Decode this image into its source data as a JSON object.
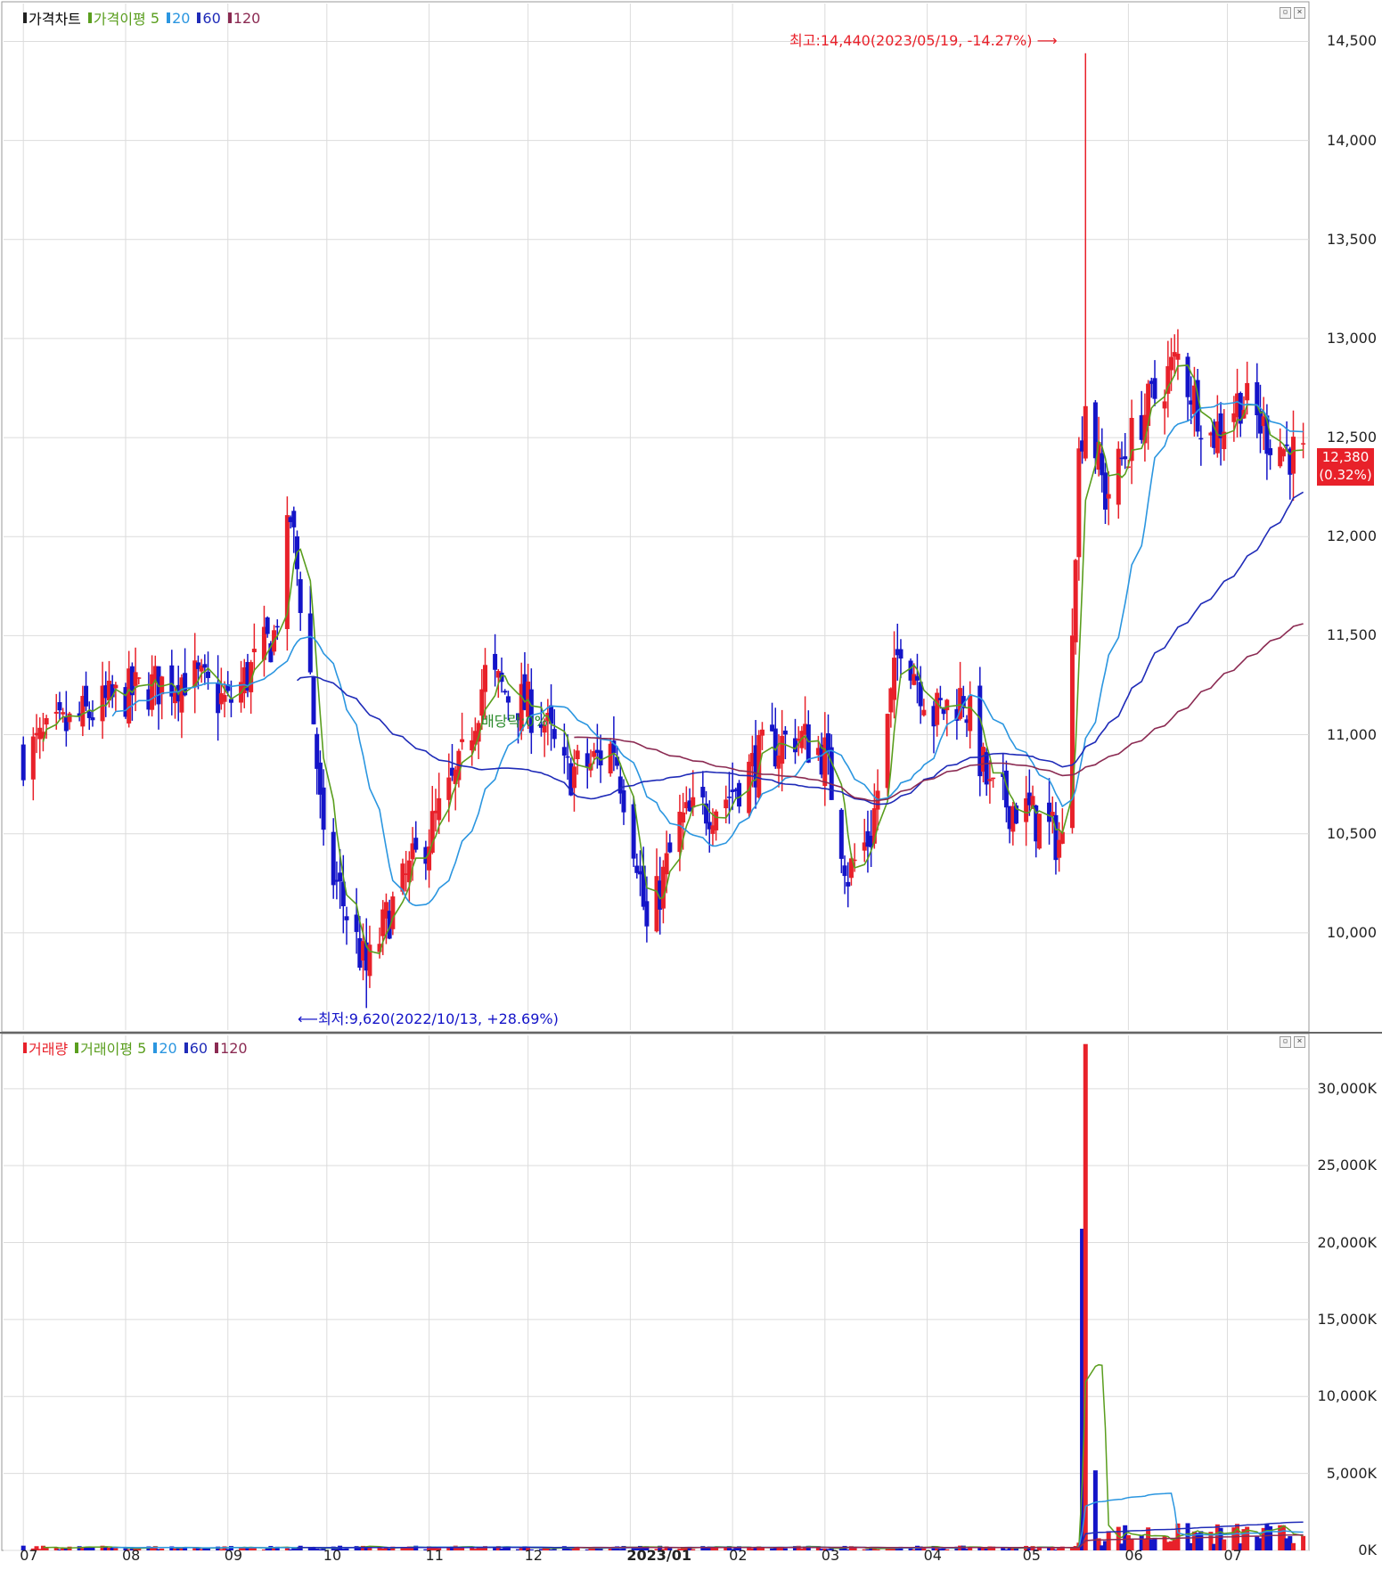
{
  "price_panel": {
    "legend": {
      "label": "가격차트",
      "ma_label": "가격이평",
      "periods": [
        "5",
        "20",
        "60",
        "120"
      ]
    },
    "current_price": "12,380",
    "current_change": "(0.32%)",
    "high_annotation": "최고:14,440(2023/05/19, -14.27%)",
    "low_annotation": "최저:9,620(2022/10/13, +28.69%)",
    "dividend_annotation": "배당락:0%"
  },
  "volume_panel": {
    "legend": {
      "label": "거래량",
      "ma_label": "거래이평",
      "periods": [
        "5",
        "20",
        "60",
        "120"
      ]
    }
  },
  "colors": {
    "up": "#e8212a",
    "down": "#1414c8",
    "ma5": "#5a9e1e",
    "ma20": "#2b96e0",
    "ma60": "#1f2bb8",
    "ma120": "#8b2a52",
    "grid": "#dcdcdc"
  },
  "chart_data": [
    {
      "type": "candlestick",
      "title": "가격차트",
      "ylim": [
        9500,
        14700
      ],
      "y_ticks": [
        "14,500",
        "14,000",
        "13,500",
        "13,000",
        "12,500",
        "12,000",
        "11,500",
        "11,000",
        "10,500",
        "10,000"
      ],
      "x_ticks": [
        "07",
        "08",
        "09",
        "10",
        "11",
        "12",
        "2023/01",
        "02",
        "03",
        "04",
        "05",
        "06",
        "07"
      ],
      "series_names": [
        "가격이평 5",
        "20",
        "60",
        "120"
      ],
      "close_path": [
        {
          "date": "2022/07/01",
          "close": 10900
        },
        {
          "date": "2022/07/20",
          "close": 11100
        },
        {
          "date": "2022/08/01",
          "close": 11200
        },
        {
          "date": "2022/08/20",
          "close": 11300
        },
        {
          "date": "2022/09/01",
          "close": 11150
        },
        {
          "date": "2022/09/15",
          "close": 11500
        },
        {
          "date": "2022/09/20",
          "close": 12100
        },
        {
          "date": "2022/09/26",
          "close": 11300
        },
        {
          "date": "2022/09/30",
          "close": 10400
        },
        {
          "date": "2022/10/05",
          "close": 10200
        },
        {
          "date": "2022/10/13",
          "close": 9800
        },
        {
          "date": "2022/10/20",
          "close": 10100
        },
        {
          "date": "2022/11/01",
          "close": 10500
        },
        {
          "date": "2022/11/10",
          "close": 10800
        },
        {
          "date": "2022/11/18",
          "close": 11300
        },
        {
          "date": "2022/11/25",
          "close": 11200
        },
        {
          "date": "2022/12/05",
          "close": 11100
        },
        {
          "date": "2022/12/12",
          "close": 10800
        },
        {
          "date": "2022/12/20",
          "close": 10850
        },
        {
          "date": "2022/12/27",
          "close": 10950
        },
        {
          "date": "2023/01/03",
          "close": 10400
        },
        {
          "date": "2023/01/06",
          "close": 10000
        },
        {
          "date": "2023/01/16",
          "close": 10550
        },
        {
          "date": "2023/01/31",
          "close": 10700
        },
        {
          "date": "2023/02/10",
          "close": 10900
        },
        {
          "date": "2023/02/20",
          "close": 11000
        },
        {
          "date": "2023/03/01",
          "close": 10900
        },
        {
          "date": "2023/03/08",
          "close": 10300
        },
        {
          "date": "2023/03/15",
          "close": 10500
        },
        {
          "date": "2023/03/24",
          "close": 11500
        },
        {
          "date": "2023/04/03",
          "close": 11100
        },
        {
          "date": "2023/04/12",
          "close": 11200
        },
        {
          "date": "2023/04/20",
          "close": 10700
        },
        {
          "date": "2023/05/02",
          "close": 10600
        },
        {
          "date": "2023/05/12",
          "close": 10450
        },
        {
          "date": "2023/05/17",
          "close": 12400
        },
        {
          "date": "2023/05/19",
          "close": 12700
        },
        {
          "date": "2023/05/25",
          "close": 12200
        },
        {
          "date": "2023/06/05",
          "close": 12600
        },
        {
          "date": "2023/06/16",
          "close": 12900
        },
        {
          "date": "2023/06/26",
          "close": 12500
        },
        {
          "date": "2023/07/05",
          "close": 12700
        },
        {
          "date": "2023/07/14",
          "close": 12500
        },
        {
          "date": "2023/07/24",
          "close": 12380
        }
      ],
      "extremes": {
        "high": {
          "date": "2023/05/19",
          "value": 14440
        },
        "low": {
          "date": "2022/10/13",
          "value": 9620
        }
      }
    },
    {
      "type": "bar",
      "title": "거래량",
      "ylim": [
        0,
        33000
      ],
      "y_ticks": [
        "30,000K",
        "25,000K",
        "20,000K",
        "15,000K",
        "10,000K",
        "5,000K",
        "0K"
      ],
      "x_ticks": [
        "07",
        "08",
        "09",
        "10",
        "11",
        "12",
        "2023/01",
        "02",
        "03",
        "04",
        "05",
        "06",
        "07"
      ],
      "series_names": [
        "거래이평 5",
        "20",
        "60",
        "120"
      ],
      "unit": "K",
      "notable_bars": [
        {
          "date": "2023/05/18",
          "value": 20900
        },
        {
          "date": "2023/05/19",
          "value": 32900
        },
        {
          "date": "2023/05/22",
          "value": 5200
        }
      ]
    }
  ]
}
